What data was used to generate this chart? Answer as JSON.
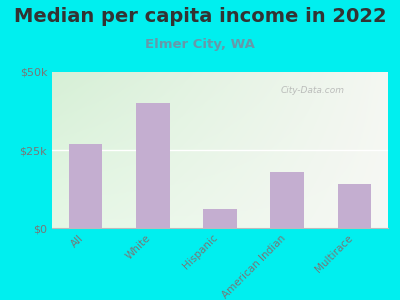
{
  "title": "Median per capita income in 2022",
  "subtitle": "Elmer City, WA",
  "categories": [
    "All",
    "White",
    "Hispanic",
    "American Indian",
    "Multirace"
  ],
  "values": [
    27000,
    40000,
    6000,
    18000,
    14000
  ],
  "bar_color": "#c4aed0",
  "background_outer": "#00efef",
  "ylim": [
    0,
    50000
  ],
  "yticks": [
    0,
    25000,
    50000
  ],
  "ytick_labels": [
    "$0",
    "$25k",
    "$50k"
  ],
  "title_fontsize": 14,
  "subtitle_fontsize": 9.5,
  "title_color": "#333333",
  "subtitle_color": "#6699aa",
  "watermark": "City-Data.com",
  "tick_color": "#777777"
}
